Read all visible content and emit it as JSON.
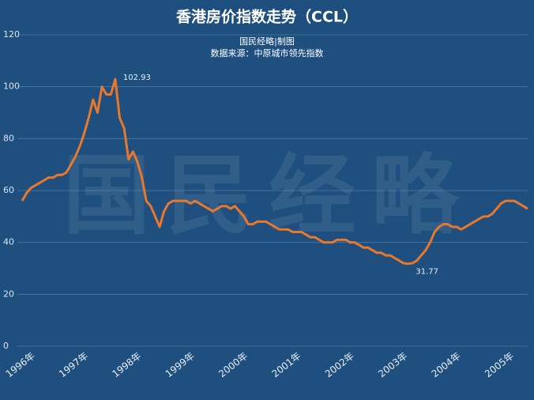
{
  "chart_data": {
    "type": "line",
    "title": "香港房价指数走势（CCL）",
    "subtitle": [
      "国民经略|制图",
      "数据来源：中原城市领先指数"
    ],
    "watermark": "国民经略",
    "categories": [
      "1996年",
      null,
      null,
      null,
      null,
      null,
      null,
      null,
      null,
      null,
      null,
      null,
      "1997年",
      null,
      null,
      null,
      null,
      null,
      null,
      null,
      null,
      null,
      null,
      null,
      "1998年",
      null,
      null,
      null,
      null,
      null,
      null,
      null,
      null,
      null,
      null,
      null,
      "1999年",
      null,
      null,
      null,
      null,
      null,
      null,
      null,
      null,
      null,
      null,
      null,
      "2000年",
      null,
      null,
      null,
      null,
      null,
      null,
      null,
      null,
      null,
      null,
      null,
      "2001年",
      null,
      null,
      null,
      null,
      null,
      null,
      null,
      null,
      null,
      null,
      null,
      "2002年",
      null,
      null,
      null,
      null,
      null,
      null,
      null,
      null,
      null,
      null,
      null,
      "2003年",
      null,
      null,
      null,
      null,
      null,
      null,
      null,
      null,
      null,
      null,
      null,
      "2004年",
      null,
      null,
      null,
      null,
      null,
      null,
      null,
      null,
      null,
      null,
      null,
      "2005年",
      null,
      null,
      null,
      null,
      null,
      null
    ],
    "series": [
      {
        "name": "CCL",
        "color": "#e8782c",
        "values": [
          56,
          59,
          61,
          62,
          63,
          64,
          65,
          65,
          66,
          66,
          67,
          70,
          73,
          77,
          82,
          88,
          95,
          90,
          100,
          97,
          97,
          102.93,
          88,
          84,
          72,
          75,
          71,
          65,
          56,
          54,
          50,
          46,
          52,
          55,
          56,
          56,
          56,
          56,
          55,
          56,
          55,
          54,
          53,
          52,
          53,
          54,
          54,
          53,
          54,
          52,
          50,
          47,
          47,
          48,
          48,
          48,
          47,
          46,
          45,
          45,
          45,
          44,
          44,
          44,
          43,
          42,
          42,
          41,
          40,
          40,
          40,
          41,
          41,
          41,
          40,
          40,
          39,
          38,
          38,
          37,
          36,
          36,
          35,
          35,
          34,
          33,
          32,
          31.77,
          32,
          33,
          35,
          37,
          40,
          44,
          46,
          47,
          47,
          46,
          46,
          45,
          46,
          47,
          48,
          49,
          50,
          50,
          51,
          53,
          55,
          56,
          56,
          56,
          55,
          54,
          53
        ],
        "value_labels": [
          null,
          null,
          null,
          null,
          null,
          null,
          null,
          null,
          null,
          null,
          null,
          null,
          null,
          null,
          null,
          null,
          null,
          null,
          null,
          null,
          null,
          "102.93",
          null,
          null,
          null,
          null,
          null,
          null,
          null,
          null,
          null,
          null,
          null,
          null,
          null,
          null,
          null,
          null,
          null,
          null,
          null,
          null,
          null,
          null,
          null,
          null,
          null,
          null,
          null,
          null,
          null,
          null,
          null,
          null,
          null,
          null,
          null,
          null,
          null,
          null,
          null,
          null,
          null,
          null,
          null,
          null,
          null,
          null,
          null,
          null,
          null,
          null,
          null,
          null,
          null,
          null,
          null,
          null,
          null,
          null,
          null,
          null,
          null,
          null,
          null,
          null,
          null,
          "31.77",
          null,
          null,
          null,
          null,
          null,
          null,
          null,
          null,
          null,
          null,
          null,
          null,
          null,
          null,
          null,
          null,
          null,
          null,
          null,
          null,
          null,
          null,
          null,
          null,
          null,
          null,
          null
        ]
      }
    ],
    "ylim": [
      0,
      120
    ],
    "yticks": [
      0,
      20,
      40,
      60,
      80,
      100,
      120
    ],
    "grid": true
  }
}
